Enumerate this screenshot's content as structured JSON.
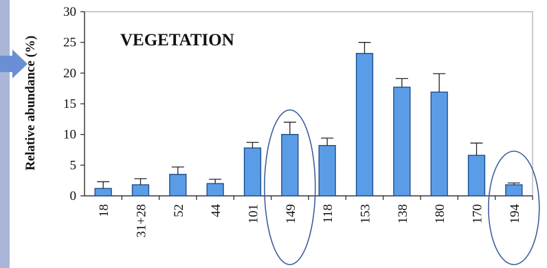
{
  "chart_data": {
    "type": "bar",
    "title": "VEGETATION",
    "ylabel": "Relative abundance (%)",
    "xlabel": "",
    "ylim": [
      0,
      30
    ],
    "yticks": [
      0,
      5,
      10,
      15,
      20,
      25,
      30
    ],
    "categories": [
      "18",
      "31+28",
      "52",
      "44",
      "101",
      "149",
      "118",
      "153",
      "138",
      "180",
      "170",
      "194"
    ],
    "values": [
      1.2,
      1.8,
      3.5,
      2.0,
      7.8,
      10.0,
      8.2,
      23.2,
      17.7,
      16.9,
      6.6,
      1.8
    ],
    "errors": [
      1.1,
      1.0,
      1.2,
      0.7,
      0.9,
      2.0,
      1.2,
      1.8,
      1.4,
      3.0,
      2.0,
      0.3
    ],
    "highlighted_categories": [
      "149",
      "194"
    ],
    "grid": false,
    "colors": {
      "bar_fill": "#5b9ce6",
      "bar_stroke": "#1f4e8c",
      "highlight_ellipse": "#3d5f9a",
      "side_panel": "#a9b6d8",
      "arrow": "#6b8fd4"
    }
  }
}
